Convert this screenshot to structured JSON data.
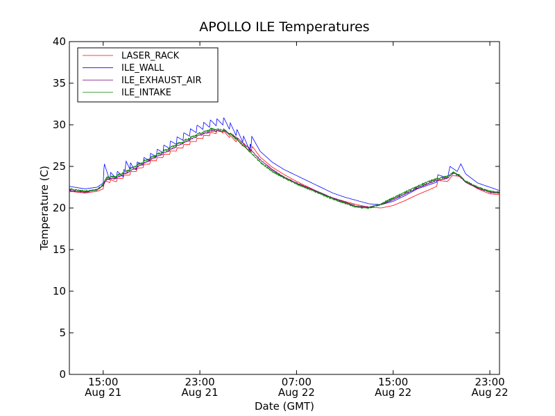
{
  "chart_data": {
    "type": "line",
    "title": "APOLLO ILE Temperatures",
    "xlabel": "Date (GMT)",
    "ylabel": "Temperature (C)",
    "xlim": [
      12.2,
      47.8
    ],
    "ylim": [
      0,
      40
    ],
    "grid": false,
    "legend_position": "top-left",
    "x_ticks": [
      {
        "x": 15,
        "time": "15:00",
        "date": "Aug 21"
      },
      {
        "x": 23,
        "time": "23:00",
        "date": "Aug 21"
      },
      {
        "x": 31,
        "time": "07:00",
        "date": "Aug 22"
      },
      {
        "x": 39,
        "time": "15:00",
        "date": "Aug 22"
      },
      {
        "x": 47,
        "time": "23:00",
        "date": "Aug 22"
      }
    ],
    "y_ticks": [
      0,
      5,
      10,
      15,
      20,
      25,
      30,
      35,
      40
    ],
    "series": [
      {
        "name": "LASER_RACK",
        "color": "#ff0000",
        "sawtooth": {
          "start": 15,
          "end": 27.2,
          "period": 0.55,
          "amplitude": 0.35
        },
        "points": [
          [
            12.2,
            22.0
          ],
          [
            13.5,
            21.8
          ],
          [
            14.5,
            22.0
          ],
          [
            15.0,
            22.3
          ],
          [
            15.2,
            23.0
          ],
          [
            16.0,
            23.1
          ],
          [
            17.0,
            23.8
          ],
          [
            18.0,
            24.6
          ],
          [
            19.0,
            25.4
          ],
          [
            20.0,
            26.1
          ],
          [
            21.0,
            26.8
          ],
          [
            22.0,
            27.5
          ],
          [
            23.0,
            28.2
          ],
          [
            24.0,
            28.8
          ],
          [
            24.8,
            29.1
          ],
          [
            25.5,
            28.4
          ],
          [
            26.5,
            27.5
          ],
          [
            27.2,
            26.6
          ],
          [
            27.35,
            27.4
          ],
          [
            28.0,
            26.1
          ],
          [
            29.0,
            24.9
          ],
          [
            30.0,
            24.0
          ],
          [
            31.0,
            23.2
          ],
          [
            32.0,
            22.5
          ],
          [
            33.0,
            21.8
          ],
          [
            34.0,
            21.2
          ],
          [
            35.0,
            20.8
          ],
          [
            36.0,
            20.4
          ],
          [
            37.0,
            20.1
          ],
          [
            38.0,
            20.0
          ],
          [
            39.0,
            20.3
          ],
          [
            40.0,
            20.9
          ],
          [
            41.0,
            21.6
          ],
          [
            42.0,
            22.2
          ],
          [
            42.6,
            22.6
          ],
          [
            42.7,
            23.3
          ],
          [
            43.5,
            23.2
          ],
          [
            43.9,
            23.9
          ],
          [
            44.5,
            23.8
          ],
          [
            45.0,
            23.2
          ],
          [
            46.0,
            22.3
          ],
          [
            47.0,
            21.7
          ],
          [
            47.8,
            21.6
          ]
        ]
      },
      {
        "name": "ILE_WALL",
        "color": "#0000ff",
        "sawtooth": {
          "start": 15,
          "end": 27.2,
          "period": 0.55,
          "amplitude": 0.85
        },
        "points": [
          [
            12.2,
            22.6
          ],
          [
            13.5,
            22.3
          ],
          [
            14.5,
            22.5
          ],
          [
            15.0,
            23.0
          ],
          [
            15.1,
            24.5
          ],
          [
            15.5,
            23.4
          ],
          [
            16.0,
            23.5
          ],
          [
            16.8,
            23.8
          ],
          [
            16.9,
            25.1
          ],
          [
            17.5,
            24.3
          ],
          [
            18.0,
            24.9
          ],
          [
            19.0,
            25.8
          ],
          [
            20.0,
            26.7
          ],
          [
            21.0,
            27.6
          ],
          [
            22.0,
            28.5
          ],
          [
            23.0,
            29.3
          ],
          [
            24.0,
            29.8
          ],
          [
            25.0,
            30.0
          ],
          [
            25.5,
            29.4
          ],
          [
            26.5,
            28.0
          ],
          [
            27.2,
            26.8
          ],
          [
            27.3,
            28.6
          ],
          [
            28.0,
            26.8
          ],
          [
            29.0,
            25.5
          ],
          [
            30.0,
            24.6
          ],
          [
            31.0,
            23.9
          ],
          [
            32.0,
            23.2
          ],
          [
            33.0,
            22.5
          ],
          [
            34.0,
            21.8
          ],
          [
            35.0,
            21.3
          ],
          [
            36.0,
            20.9
          ],
          [
            37.0,
            20.5
          ],
          [
            38.0,
            20.4
          ],
          [
            39.0,
            20.8
          ],
          [
            40.0,
            21.5
          ],
          [
            41.0,
            22.3
          ],
          [
            42.0,
            22.8
          ],
          [
            42.6,
            23.1
          ],
          [
            42.7,
            24.0
          ],
          [
            43.5,
            23.6
          ],
          [
            43.7,
            25.0
          ],
          [
            44.3,
            24.4
          ],
          [
            44.6,
            25.3
          ],
          [
            45.0,
            24.1
          ],
          [
            46.0,
            23.0
          ],
          [
            47.0,
            22.5
          ],
          [
            47.8,
            22.1
          ]
        ]
      },
      {
        "name": "ILE_EXHAUST_AIR",
        "color": "#7f007f",
        "sawtooth": {
          "start": 15,
          "end": 25.8,
          "period": 0.55,
          "amplitude": 0.12
        },
        "noise": 0.12,
        "points": [
          [
            12.2,
            22.1
          ],
          [
            13.5,
            21.9
          ],
          [
            14.5,
            22.2
          ],
          [
            15.0,
            22.7
          ],
          [
            15.3,
            23.4
          ],
          [
            16.0,
            23.5
          ],
          [
            17.0,
            24.2
          ],
          [
            18.0,
            25.0
          ],
          [
            19.0,
            25.8
          ],
          [
            20.0,
            26.5
          ],
          [
            21.0,
            27.3
          ],
          [
            22.0,
            28.0
          ],
          [
            23.0,
            28.7
          ],
          [
            24.0,
            29.2
          ],
          [
            25.0,
            29.2
          ],
          [
            26.0,
            28.5
          ],
          [
            27.0,
            27.3
          ],
          [
            28.0,
            25.8
          ],
          [
            29.0,
            24.6
          ],
          [
            30.0,
            23.7
          ],
          [
            31.0,
            23.0
          ],
          [
            32.0,
            22.4
          ],
          [
            33.0,
            21.8
          ],
          [
            34.0,
            21.2
          ],
          [
            35.0,
            20.7
          ],
          [
            36.0,
            20.2
          ],
          [
            37.0,
            20.1
          ],
          [
            38.0,
            20.4
          ],
          [
            39.0,
            21.0
          ],
          [
            40.0,
            21.7
          ],
          [
            41.0,
            22.4
          ],
          [
            42.0,
            23.0
          ],
          [
            42.6,
            23.3
          ],
          [
            43.5,
            23.6
          ],
          [
            44.0,
            24.2
          ],
          [
            44.5,
            23.8
          ],
          [
            45.0,
            23.1
          ],
          [
            46.0,
            22.4
          ],
          [
            47.0,
            21.9
          ],
          [
            47.8,
            21.8
          ]
        ]
      },
      {
        "name": "ILE_INTAKE",
        "color": "#008000",
        "sawtooth": {
          "start": 15,
          "end": 25.8,
          "period": 0.55,
          "amplitude": 0.18
        },
        "noise": 0.18,
        "points": [
          [
            12.2,
            22.3
          ],
          [
            13.5,
            22.0
          ],
          [
            14.5,
            22.2
          ],
          [
            15.0,
            22.8
          ],
          [
            15.3,
            23.6
          ],
          [
            16.0,
            23.7
          ],
          [
            17.0,
            24.4
          ],
          [
            18.0,
            25.2
          ],
          [
            19.0,
            26.0
          ],
          [
            20.0,
            26.7
          ],
          [
            21.0,
            27.5
          ],
          [
            22.0,
            28.2
          ],
          [
            23.0,
            28.9
          ],
          [
            24.0,
            29.4
          ],
          [
            25.0,
            29.3
          ],
          [
            26.0,
            28.3
          ],
          [
            27.0,
            27.0
          ],
          [
            28.0,
            25.5
          ],
          [
            29.0,
            24.4
          ],
          [
            30.0,
            23.6
          ],
          [
            31.0,
            22.9
          ],
          [
            32.0,
            22.3
          ],
          [
            33.0,
            21.7
          ],
          [
            34.0,
            21.1
          ],
          [
            35.0,
            20.6
          ],
          [
            36.0,
            20.1
          ],
          [
            37.0,
            20.0
          ],
          [
            38.0,
            20.5
          ],
          [
            39.0,
            21.2
          ],
          [
            40.0,
            21.9
          ],
          [
            41.0,
            22.6
          ],
          [
            42.0,
            23.2
          ],
          [
            42.6,
            23.5
          ],
          [
            43.5,
            23.8
          ],
          [
            44.0,
            24.3
          ],
          [
            44.5,
            23.9
          ],
          [
            45.0,
            23.2
          ],
          [
            46.0,
            22.5
          ],
          [
            47.0,
            22.0
          ],
          [
            47.8,
            21.9
          ]
        ]
      }
    ]
  }
}
